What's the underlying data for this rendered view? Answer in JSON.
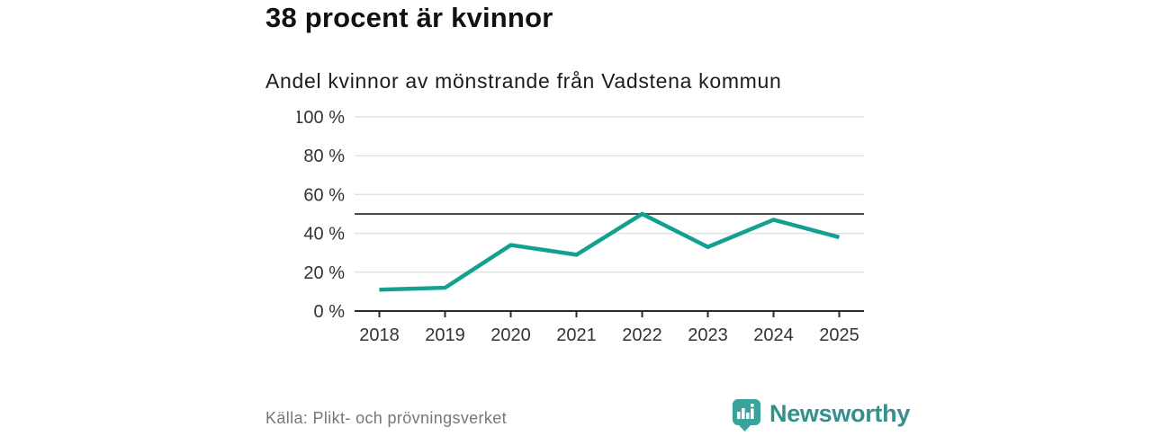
{
  "header": {
    "title": "38 procent är kvinnor",
    "subtitle": "Andel kvinnor av mönstrande från Vadstena kommun"
  },
  "chart_data": {
    "type": "line",
    "title": "Andel kvinnor av mönstrande från Vadstena kommun",
    "categories": [
      "2018",
      "2019",
      "2020",
      "2021",
      "2022",
      "2023",
      "2024",
      "2025"
    ],
    "series": [
      {
        "name": "Andel kvinnor av mönstrande",
        "values": [
          11,
          12,
          34,
          29,
          50,
          33,
          47,
          38
        ]
      }
    ],
    "unit": "%",
    "ylim": [
      0,
      100
    ],
    "yticks": [
      0,
      20,
      40,
      60,
      80,
      100
    ],
    "ytick_labels": [
      "0 %",
      "20 %",
      "40 %",
      "60 %",
      "80 %",
      "100 %"
    ],
    "reference_line": 50,
    "grid": true,
    "legend": "none",
    "line_color": "#13a08f"
  },
  "footer": {
    "source": "Källa: Plikt- och prövningsverket",
    "brand": "Newsworthy"
  },
  "colors": {
    "accent_teal": "#13a08f",
    "logo_teal": "#3aa49c",
    "wordmark_teal": "#34908d",
    "gridline": "#e3e3e3",
    "reference_line": "#4d4d4d",
    "axis": "#2b2b2b",
    "tick_text": "#333333",
    "source_text": "#777777"
  }
}
